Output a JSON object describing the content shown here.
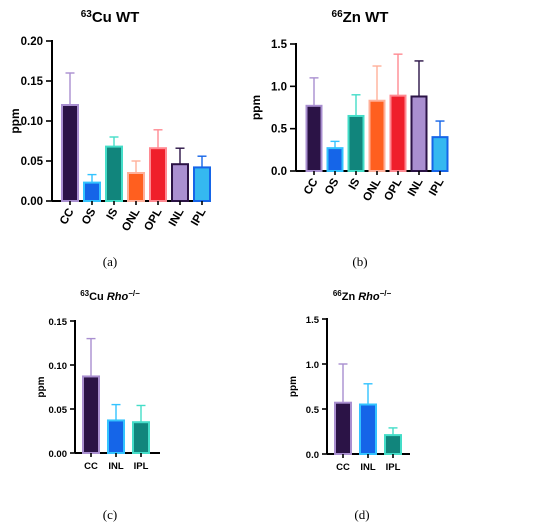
{
  "chart_data": [
    {
      "type": "bar",
      "panel": "a",
      "title_sup": "63",
      "title_text": "Cu WT",
      "title_italic": "",
      "ylabel": "ppm",
      "ylim": [
        0,
        0.2
      ],
      "yticks": [
        "0.00",
        "0.05",
        "0.10",
        "0.15",
        "0.20"
      ],
      "ytick_values": [
        0,
        0.05,
        0.1,
        0.15,
        0.2
      ],
      "categories": [
        "CC",
        "OS",
        "IS",
        "ONL",
        "OPL",
        "INL",
        "IPL"
      ],
      "values": [
        0.12,
        0.023,
        0.068,
        0.035,
        0.066,
        0.046,
        0.042
      ],
      "errors": [
        0.04,
        0.01,
        0.012,
        0.015,
        0.023,
        0.02,
        0.014
      ],
      "fill_colors": [
        "#2b1346",
        "#1565e8",
        "#11857c",
        "#ff5f1f",
        "#ef1f2b",
        "#a98fd0",
        "#35b8f0"
      ],
      "edge_colors": [
        "#a98fd0",
        "#33c3ff",
        "#44ddc8",
        "#ffb09a",
        "#ff8a92",
        "#2b1346",
        "#1565e8"
      ],
      "caption": "(a)"
    },
    {
      "type": "bar",
      "panel": "b",
      "title_sup": "66",
      "title_text": "Zn WT",
      "title_italic": "",
      "ylabel": "ppm",
      "ylim": [
        0,
        1.5
      ],
      "yticks": [
        "0.0",
        "0.5",
        "1.0",
        "1.5"
      ],
      "ytick_values": [
        0,
        0.5,
        1.0,
        1.5
      ],
      "categories": [
        "CC",
        "OS",
        "IS",
        "ONL",
        "OPL",
        "INL",
        "IPL"
      ],
      "values": [
        0.77,
        0.27,
        0.65,
        0.83,
        0.89,
        0.88,
        0.4
      ],
      "errors": [
        0.33,
        0.08,
        0.25,
        0.41,
        0.49,
        0.42,
        0.19
      ],
      "fill_colors": [
        "#2b1346",
        "#1565e8",
        "#11857c",
        "#ff5f1f",
        "#ef1f2b",
        "#a98fd0",
        "#35b8f0"
      ],
      "edge_colors": [
        "#a98fd0",
        "#33c3ff",
        "#44ddc8",
        "#ffb09a",
        "#ff8a92",
        "#2b1346",
        "#1565e8"
      ],
      "caption": "(b)"
    },
    {
      "type": "bar",
      "panel": "c",
      "title_sup": "63",
      "title_text": "Cu ",
      "title_italic": "Rho",
      "title_sup_after": "−/−",
      "ylabel": "ppm",
      "ylim": [
        0,
        0.15
      ],
      "yticks": [
        "0.00",
        "0.05",
        "0.10",
        "0.15"
      ],
      "ytick_values": [
        0,
        0.05,
        0.1,
        0.15
      ],
      "categories": [
        "CC",
        "INL",
        "IPL"
      ],
      "values": [
        0.087,
        0.037,
        0.035
      ],
      "errors": [
        0.043,
        0.018,
        0.019
      ],
      "fill_colors": [
        "#2b1346",
        "#1565e8",
        "#11857c"
      ],
      "edge_colors": [
        "#a98fd0",
        "#33c3ff",
        "#44ddc8"
      ],
      "caption": "(c)"
    },
    {
      "type": "bar",
      "panel": "d",
      "title_sup": "66",
      "title_text": "Zn ",
      "title_italic": "Rho",
      "title_sup_after": "−/−",
      "ylabel": "ppm",
      "ylim": [
        0,
        1.5
      ],
      "yticks": [
        "0.0",
        "0.5",
        "1.0",
        "1.5"
      ],
      "ytick_values": [
        0,
        0.5,
        1.0,
        1.5
      ],
      "categories": [
        "CC",
        "INL",
        "IPL"
      ],
      "values": [
        0.57,
        0.55,
        0.21
      ],
      "errors": [
        0.43,
        0.23,
        0.08
      ],
      "fill_colors": [
        "#2b1346",
        "#1565e8",
        "#11857c"
      ],
      "edge_colors": [
        "#a98fd0",
        "#33c3ff",
        "#44ddc8"
      ],
      "caption": "(d)"
    }
  ]
}
